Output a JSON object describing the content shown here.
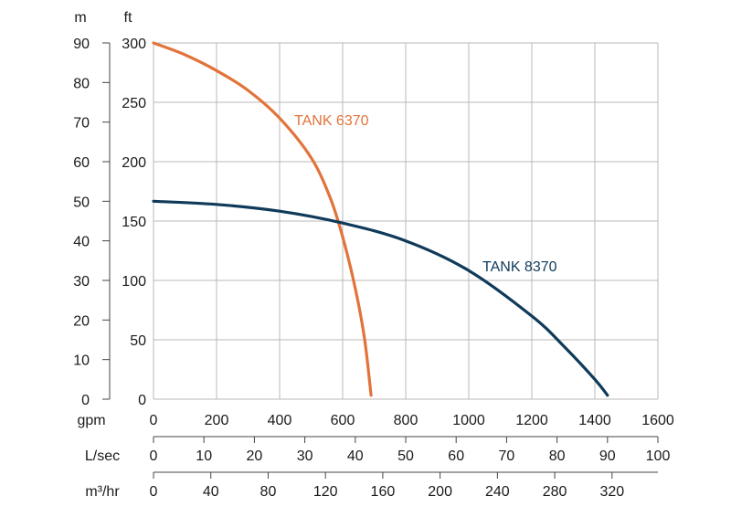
{
  "chart_data": {
    "type": "line",
    "grid": true,
    "legend": "inline",
    "axes": {
      "y_left_m": {
        "unit": "m",
        "range": [
          0,
          90
        ],
        "ticks": [
          "0",
          "10",
          "20",
          "30",
          "40",
          "50",
          "60",
          "70",
          "80",
          "90"
        ]
      },
      "y_ft": {
        "unit": "ft",
        "range": [
          0,
          300
        ],
        "ticks": [
          "0",
          "50",
          "100",
          "150",
          "200",
          "250",
          "300"
        ]
      },
      "x_gpm": {
        "unit": "gpm",
        "range": [
          0,
          1600
        ],
        "ticks": [
          "0",
          "200",
          "400",
          "600",
          "800",
          "1000",
          "1200",
          "1400",
          "1600"
        ]
      },
      "x_lsec": {
        "unit": "L/sec",
        "range": [
          0,
          100
        ],
        "ticks": [
          "0",
          "10",
          "20",
          "30",
          "40",
          "50",
          "60",
          "70",
          "80",
          "90",
          "100"
        ]
      },
      "x_m3hr": {
        "unit": "m³/hr",
        "range": [
          0,
          320
        ],
        "ticks": [
          "0",
          "40",
          "80",
          "120",
          "160",
          "200",
          "240",
          "280",
          "320"
        ]
      }
    },
    "series": [
      {
        "name": "TANK 6370",
        "color": "#e2733a",
        "x": [
          0,
          100,
          200,
          300,
          400,
          500,
          560,
          600,
          640,
          670,
          690
        ],
        "y": [
          90,
          87,
          83,
          78,
          71,
          61,
          51,
          41,
          28,
          15,
          1
        ]
      },
      {
        "name": "TANK 8370",
        "color": "#0f3a5a",
        "x": [
          0,
          200,
          400,
          600,
          800,
          1000,
          1200,
          1300,
          1400,
          1440
        ],
        "y": [
          50,
          49.2,
          47.5,
          44.5,
          40,
          32.5,
          21,
          13.5,
          5,
          1
        ]
      }
    ]
  }
}
